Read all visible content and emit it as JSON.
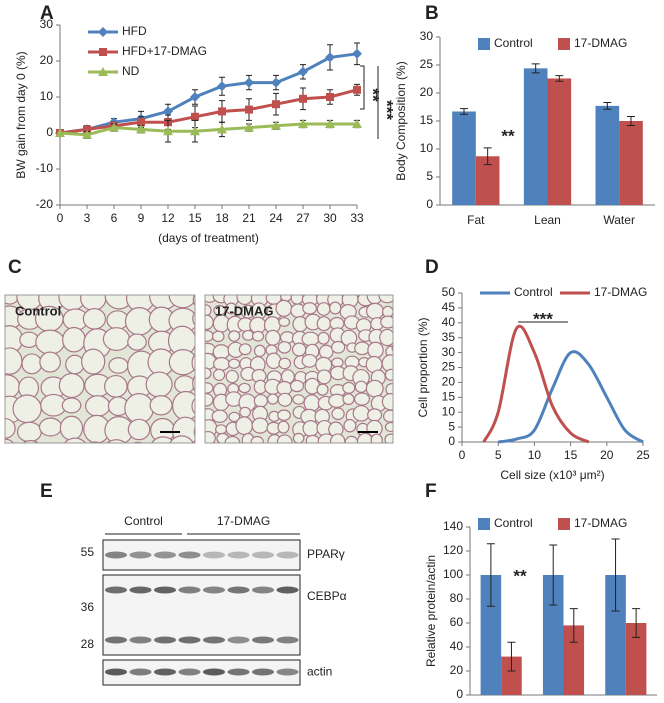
{
  "panel_labels": [
    "A",
    "B",
    "C",
    "D",
    "E",
    "F"
  ],
  "chart_data": [
    {
      "type": "line",
      "ylabel": "BW gain from day 0 (%)",
      "xlabel": "(days of treatment)",
      "x": [
        0,
        3,
        6,
        9,
        12,
        15,
        18,
        21,
        24,
        27,
        30,
        33
      ],
      "xlim": [
        0,
        33
      ],
      "xticks": [
        0,
        3,
        6,
        9,
        12,
        15,
        18,
        21,
        24,
        27,
        30,
        33
      ],
      "ylim": [
        -20,
        30
      ],
      "yticks": [
        -20,
        -10,
        0,
        10,
        20,
        30
      ],
      "legend": "top-left",
      "annotations": [
        "**",
        "***"
      ],
      "series": [
        {
          "name": "HFD",
          "color": "#4f81bd",
          "marker": "diamond",
          "values": [
            0,
            1,
            3,
            4,
            6,
            10,
            13,
            14,
            14,
            17,
            21,
            22
          ],
          "errors": [
            0,
            1,
            1,
            2,
            2,
            2,
            2.5,
            2,
            2,
            2,
            3.5,
            3
          ]
        },
        {
          "name": "HFD+17-DMAG",
          "color": "#c0504d",
          "marker": "square",
          "values": [
            0,
            1,
            2,
            3,
            3,
            4.5,
            6,
            6.5,
            8,
            9.5,
            10,
            12
          ],
          "errors": [
            0,
            1,
            1,
            1.5,
            2,
            3,
            3,
            3,
            3,
            3,
            2,
            1.5
          ]
        },
        {
          "name": "ND",
          "color": "#9bbb59",
          "marker": "triangle",
          "values": [
            0,
            -0.5,
            1.5,
            1,
            0.5,
            0.5,
            1,
            1.5,
            2,
            2.5,
            2.5,
            2.5
          ],
          "errors": [
            0,
            1,
            1,
            1,
            3,
            3,
            2,
            1,
            1,
            1,
            1,
            1
          ]
        }
      ]
    },
    {
      "type": "bar",
      "ylabel": "Body Composition (%)",
      "categories": [
        "Fat",
        "Lean",
        "Water"
      ],
      "ylim": [
        0,
        30
      ],
      "yticks": [
        0,
        5,
        10,
        15,
        20,
        25,
        30
      ],
      "legend": "top",
      "annotations": [
        "**"
      ],
      "series": [
        {
          "name": "Control",
          "color": "#4f81bd",
          "values": [
            16.7,
            24.4,
            17.7
          ],
          "errors": [
            0.5,
            0.8,
            0.6
          ]
        },
        {
          "name": "17-DMAG",
          "color": "#c0504d",
          "values": [
            8.7,
            22.6,
            15.0
          ],
          "errors": [
            1.5,
            0.5,
            0.8
          ]
        }
      ]
    },
    {
      "type": "line",
      "ylabel": "Cell proportion (%)",
      "xlabel": "Cell size (x10³ μm²)",
      "smooth": true,
      "xlim": [
        0,
        25
      ],
      "xticks": [
        0,
        5,
        10,
        15,
        20,
        25
      ],
      "ylim": [
        0,
        50
      ],
      "yticks": [
        0,
        5,
        10,
        15,
        20,
        25,
        30,
        35,
        40,
        45,
        50
      ],
      "legend": "top",
      "annotations": [
        "***"
      ],
      "series": [
        {
          "name": "Control",
          "color": "#4f81bd",
          "x": [
            5,
            7.5,
            10,
            12.5,
            15,
            17.5,
            20,
            22.5,
            25
          ],
          "values": [
            0,
            1,
            4,
            18,
            30,
            26,
            15,
            4,
            0
          ]
        },
        {
          "name": "17-DMAG",
          "color": "#c0504d",
          "x": [
            3,
            5,
            7.5,
            10,
            12.5,
            15,
            17.5
          ],
          "values": [
            0,
            10,
            38,
            30,
            12,
            3,
            0
          ]
        }
      ]
    },
    {
      "type": "bar",
      "ylabel": "Relative protein/actin",
      "categories": [
        null,
        null,
        null
      ],
      "ylim": [
        0,
        140
      ],
      "yticks": [
        0,
        20,
        40,
        60,
        80,
        100,
        120,
        140
      ],
      "legend": "top",
      "annotations": [
        "**"
      ],
      "series": [
        {
          "name": "Control",
          "color": "#4f81bd",
          "values": [
            100,
            100,
            100
          ],
          "errors": [
            26,
            25,
            30
          ]
        },
        {
          "name": "17-DMAG",
          "color": "#c0504d",
          "values": [
            32,
            58,
            60
          ],
          "errors": [
            12,
            14,
            12
          ]
        }
      ]
    }
  ],
  "micrographs": [
    {
      "label": "Control"
    },
    {
      "label": "17-DMAG"
    }
  ],
  "blot": {
    "groups": [
      "Control",
      "17-DMAG"
    ],
    "markers": [
      55,
      36,
      28
    ],
    "proteins": [
      "PPARγ",
      "CEBPα",
      "actin"
    ]
  }
}
